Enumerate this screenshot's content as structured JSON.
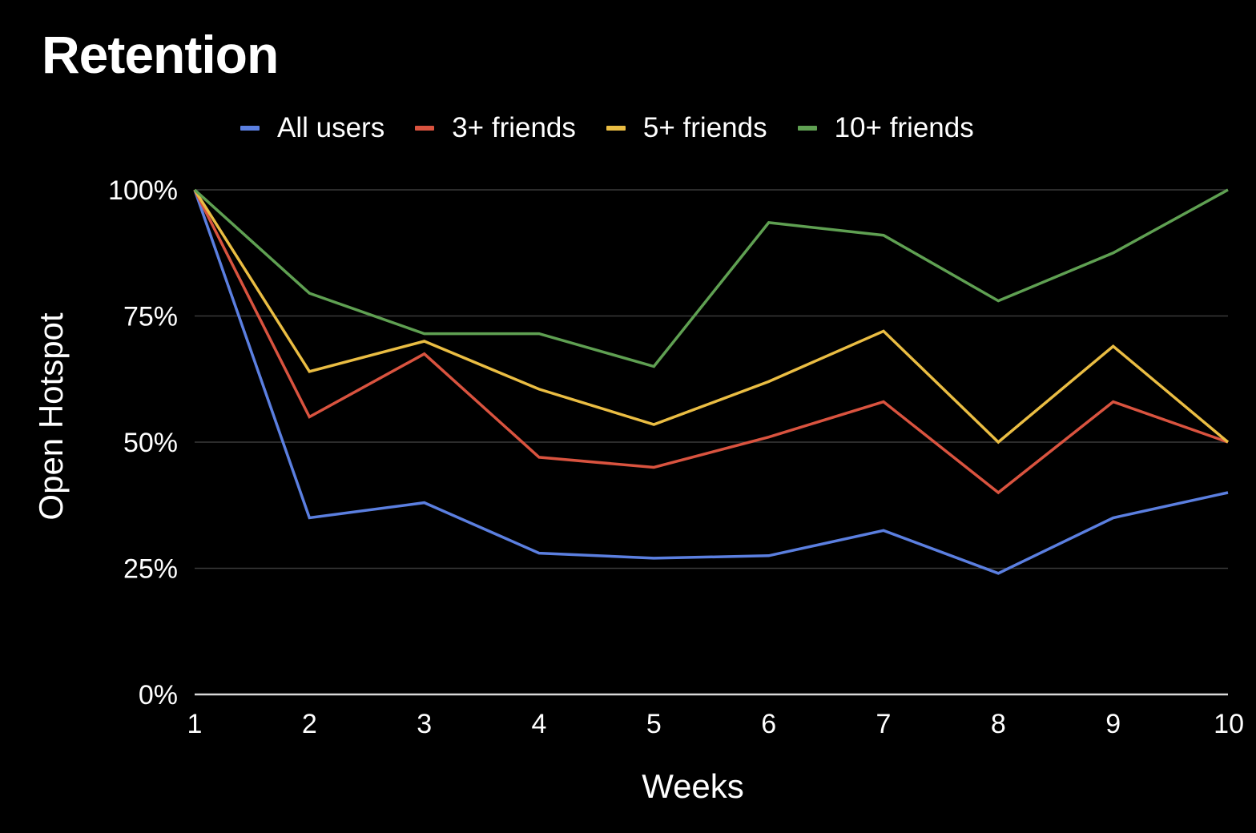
{
  "chart_data": {
    "type": "line",
    "title": "Retention",
    "xlabel": "Weeks",
    "ylabel": "Open Hotspot",
    "x": [
      1,
      2,
      3,
      4,
      5,
      6,
      7,
      8,
      9,
      10
    ],
    "x_tick_labels": [
      "1",
      "2",
      "3",
      "4",
      "5",
      "6",
      "7",
      "8",
      "9",
      "10"
    ],
    "xlim": [
      1,
      10
    ],
    "ylim": [
      0,
      100
    ],
    "y_ticks": [
      0,
      25,
      50,
      75,
      100
    ],
    "y_tick_labels": [
      "0%",
      "25%",
      "50%",
      "75%",
      "100%"
    ],
    "grid": true,
    "legend_position": "top",
    "series": [
      {
        "name": "All users",
        "color": "#5b7fe0",
        "values": [
          100,
          35,
          38,
          28,
          27,
          27.5,
          32.5,
          24,
          35,
          40
        ]
      },
      {
        "name": "3+ friends",
        "color": "#d9533f",
        "values": [
          100,
          55,
          67.5,
          47,
          45,
          51,
          58,
          40,
          58,
          50
        ]
      },
      {
        "name": "5+ friends",
        "color": "#eabd43",
        "values": [
          100,
          64,
          70,
          60.5,
          53.5,
          62,
          72,
          50,
          69,
          50
        ]
      },
      {
        "name": "10+ friends",
        "color": "#5fa052",
        "values": [
          100,
          79.5,
          71.5,
          71.5,
          65,
          93.5,
          91,
          78,
          87.5,
          100
        ]
      }
    ]
  }
}
